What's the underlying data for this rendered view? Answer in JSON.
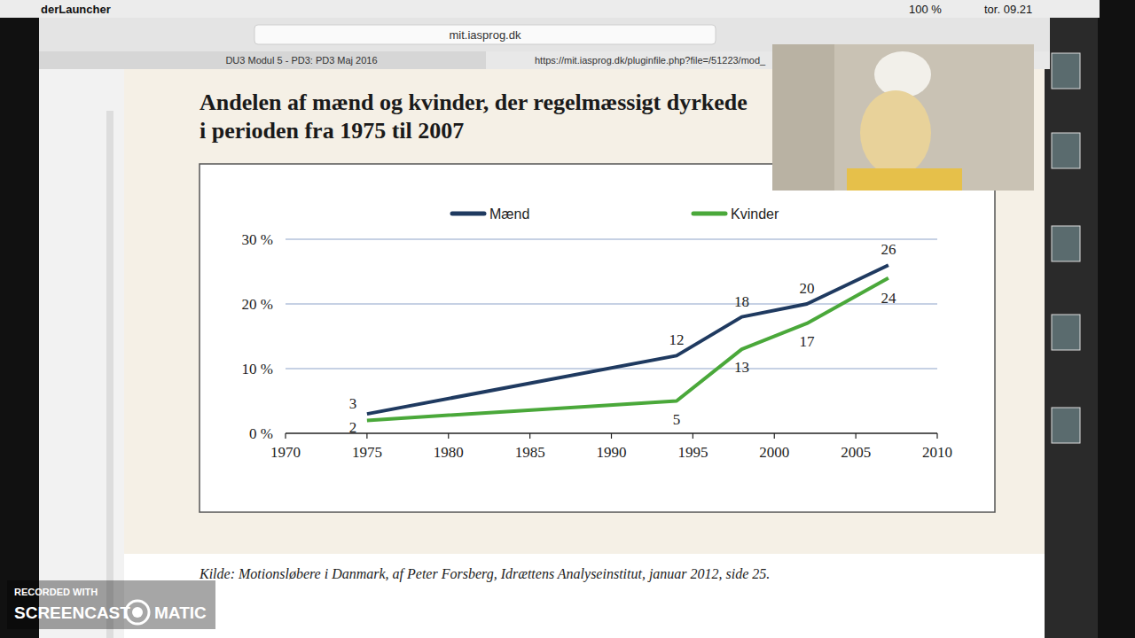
{
  "screen": {
    "app": "derLauncher",
    "battery": "100 %",
    "clock": "tor. 09.21",
    "address": "mit.iasprog.dk",
    "tab_left": "DU3 Modul 5 - PD3: PD3 Maj 2016",
    "tab_right": "https://mit.iasprog.dk/pluginfile.php?file=/51223/mod_",
    "watermark": [
      "RECORDED WITH",
      "SCREENCAST",
      "MATIC"
    ]
  },
  "chart_data": {
    "type": "line",
    "title": "Andelen af mænd og kvinder, der regelmæssigt dyrkede\ni perioden fra 1975 til 2007",
    "source": "Kilde: Motionsløbere i Danmark, af Peter Forsberg, Idrættens Analyseinstitut, januar 2012, side 25.",
    "x": [
      1975,
      1994,
      1998,
      2002,
      2007
    ],
    "series": [
      {
        "name": "Mænd",
        "color": "#1f3a60",
        "values": [
          3,
          12,
          18,
          20,
          26
        ]
      },
      {
        "name": "Kvinder",
        "color": "#4aa83a",
        "values": [
          2,
          5,
          13,
          17,
          24
        ]
      }
    ],
    "xlim": [
      1970,
      2010
    ],
    "xticks": [
      1970,
      1975,
      1980,
      1985,
      1990,
      1995,
      2000,
      2005,
      2010
    ],
    "ylim": [
      0,
      30
    ],
    "yticks": [
      {
        "value": 0,
        "label": "0 %"
      },
      {
        "value": 10,
        "label": "10 %"
      },
      {
        "value": 20,
        "label": "20 %"
      },
      {
        "value": 30,
        "label": "30 %"
      }
    ],
    "grid": true,
    "legend": "top",
    "data_labels": true,
    "line_style": "solid"
  }
}
